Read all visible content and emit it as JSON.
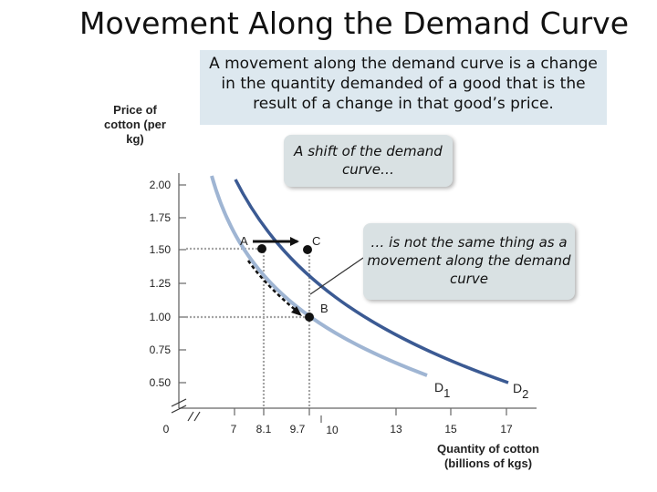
{
  "title": "Movement Along the Demand Curve",
  "definition_box": "A movement along the demand curve is a change in the quantity demanded of a good that is the result of a change in that good’s price.",
  "callouts": {
    "shift": "A shift of the demand curve…",
    "not_same": "… is not the same thing as a movement along the demand curve"
  },
  "y_axis_label": "Price of cotton (per kg)",
  "x_axis_label": "Quantity of cotton (billions of kgs)",
  "y_ticks": [
    "2.00",
    "1.75",
    "1.50",
    "1.25",
    "1.00",
    "0.75",
    "0.50"
  ],
  "x_ticks": [
    "0",
    "7",
    "8.1",
    "9.7",
    "10",
    "13",
    "15",
    "17"
  ],
  "points": [
    {
      "label": "A",
      "quantity": 8.1,
      "price": 1.5
    },
    {
      "label": "C",
      "quantity": 9.7,
      "price": 1.5
    },
    {
      "label": "B",
      "quantity": 9.7,
      "price": 1.0
    }
  ],
  "curves": {
    "d1": {
      "label": "D",
      "subscript": "1"
    },
    "d2": {
      "label": "D",
      "subscript": "2"
    }
  },
  "colors": {
    "d1_curve": "#9fb5d3",
    "d2_curve": "#3b5a93",
    "callout_bg": "#d9e1e3",
    "definition_bg": "#dde8ef"
  }
}
